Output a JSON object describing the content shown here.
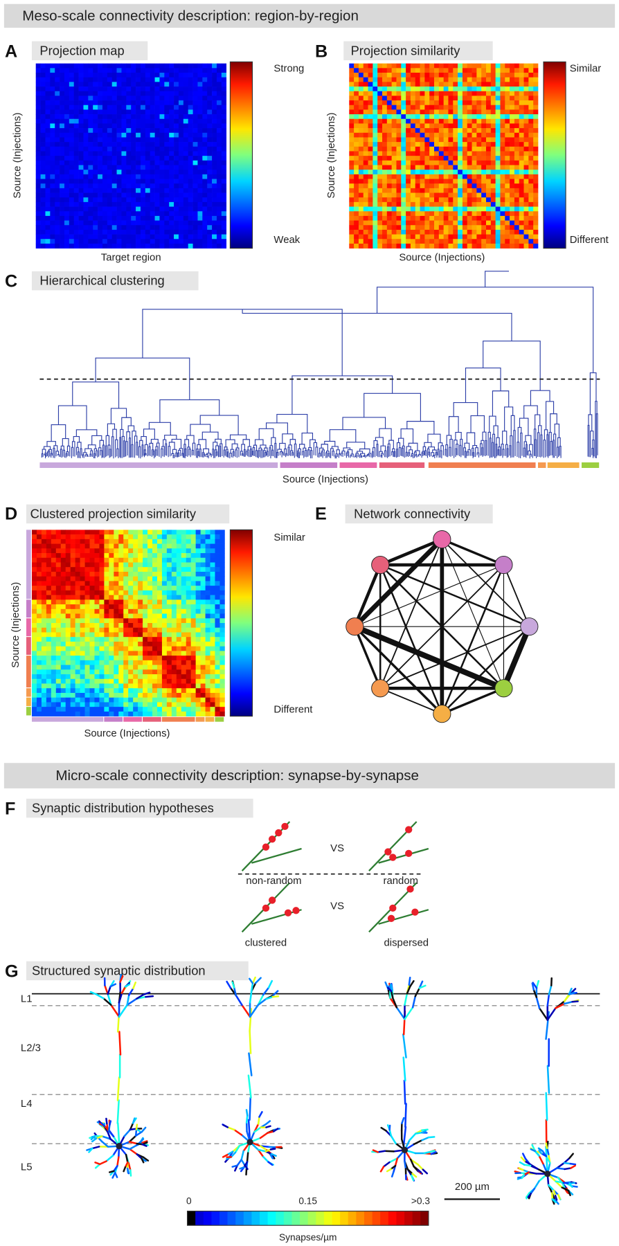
{
  "sections": [
    {
      "title": "Meso-scale connectivity description: region-by-region"
    },
    {
      "title": "Micro-scale connectivity description: synapse-by-synapse"
    }
  ],
  "panels": {
    "A": {
      "letter": "A",
      "title": "Projection map",
      "y_label": "Source (Injections)",
      "x_label": "Target region",
      "colorbar_high": "Strong",
      "colorbar_low": "Weak"
    },
    "B": {
      "letter": "B",
      "title": "Projection similarity",
      "y_label": "Source (Injections)",
      "x_label": "Source (Injections)",
      "colorbar_high": "Similar",
      "colorbar_low": "Different"
    },
    "C": {
      "letter": "C",
      "title": "Hierarchical clustering",
      "x_label": "Source (Injections)"
    },
    "D": {
      "letter": "D",
      "title": "Clustered projection similarity",
      "y_label": "Source (Injections)",
      "x_label": "Source (Injections)",
      "colorbar_high": "Similar",
      "colorbar_low": "Different"
    },
    "E": {
      "letter": "E",
      "title": "Network connectivity"
    },
    "F": {
      "letter": "F",
      "title": "Synaptic distribution hypotheses",
      "labels": [
        "non-random",
        "random",
        "clustered",
        "dispersed"
      ],
      "vs": [
        "VS",
        "VS"
      ]
    },
    "G": {
      "letter": "G",
      "title": "Structured synaptic distribution",
      "layers": [
        "L1",
        "L2/3",
        "L4",
        "L5"
      ],
      "scale_bar": "200 µm",
      "colorbar_ticks": [
        "0",
        "0.15",
        ">0.3"
      ],
      "colorbar_label": "Synapses/µm"
    }
  }
}
